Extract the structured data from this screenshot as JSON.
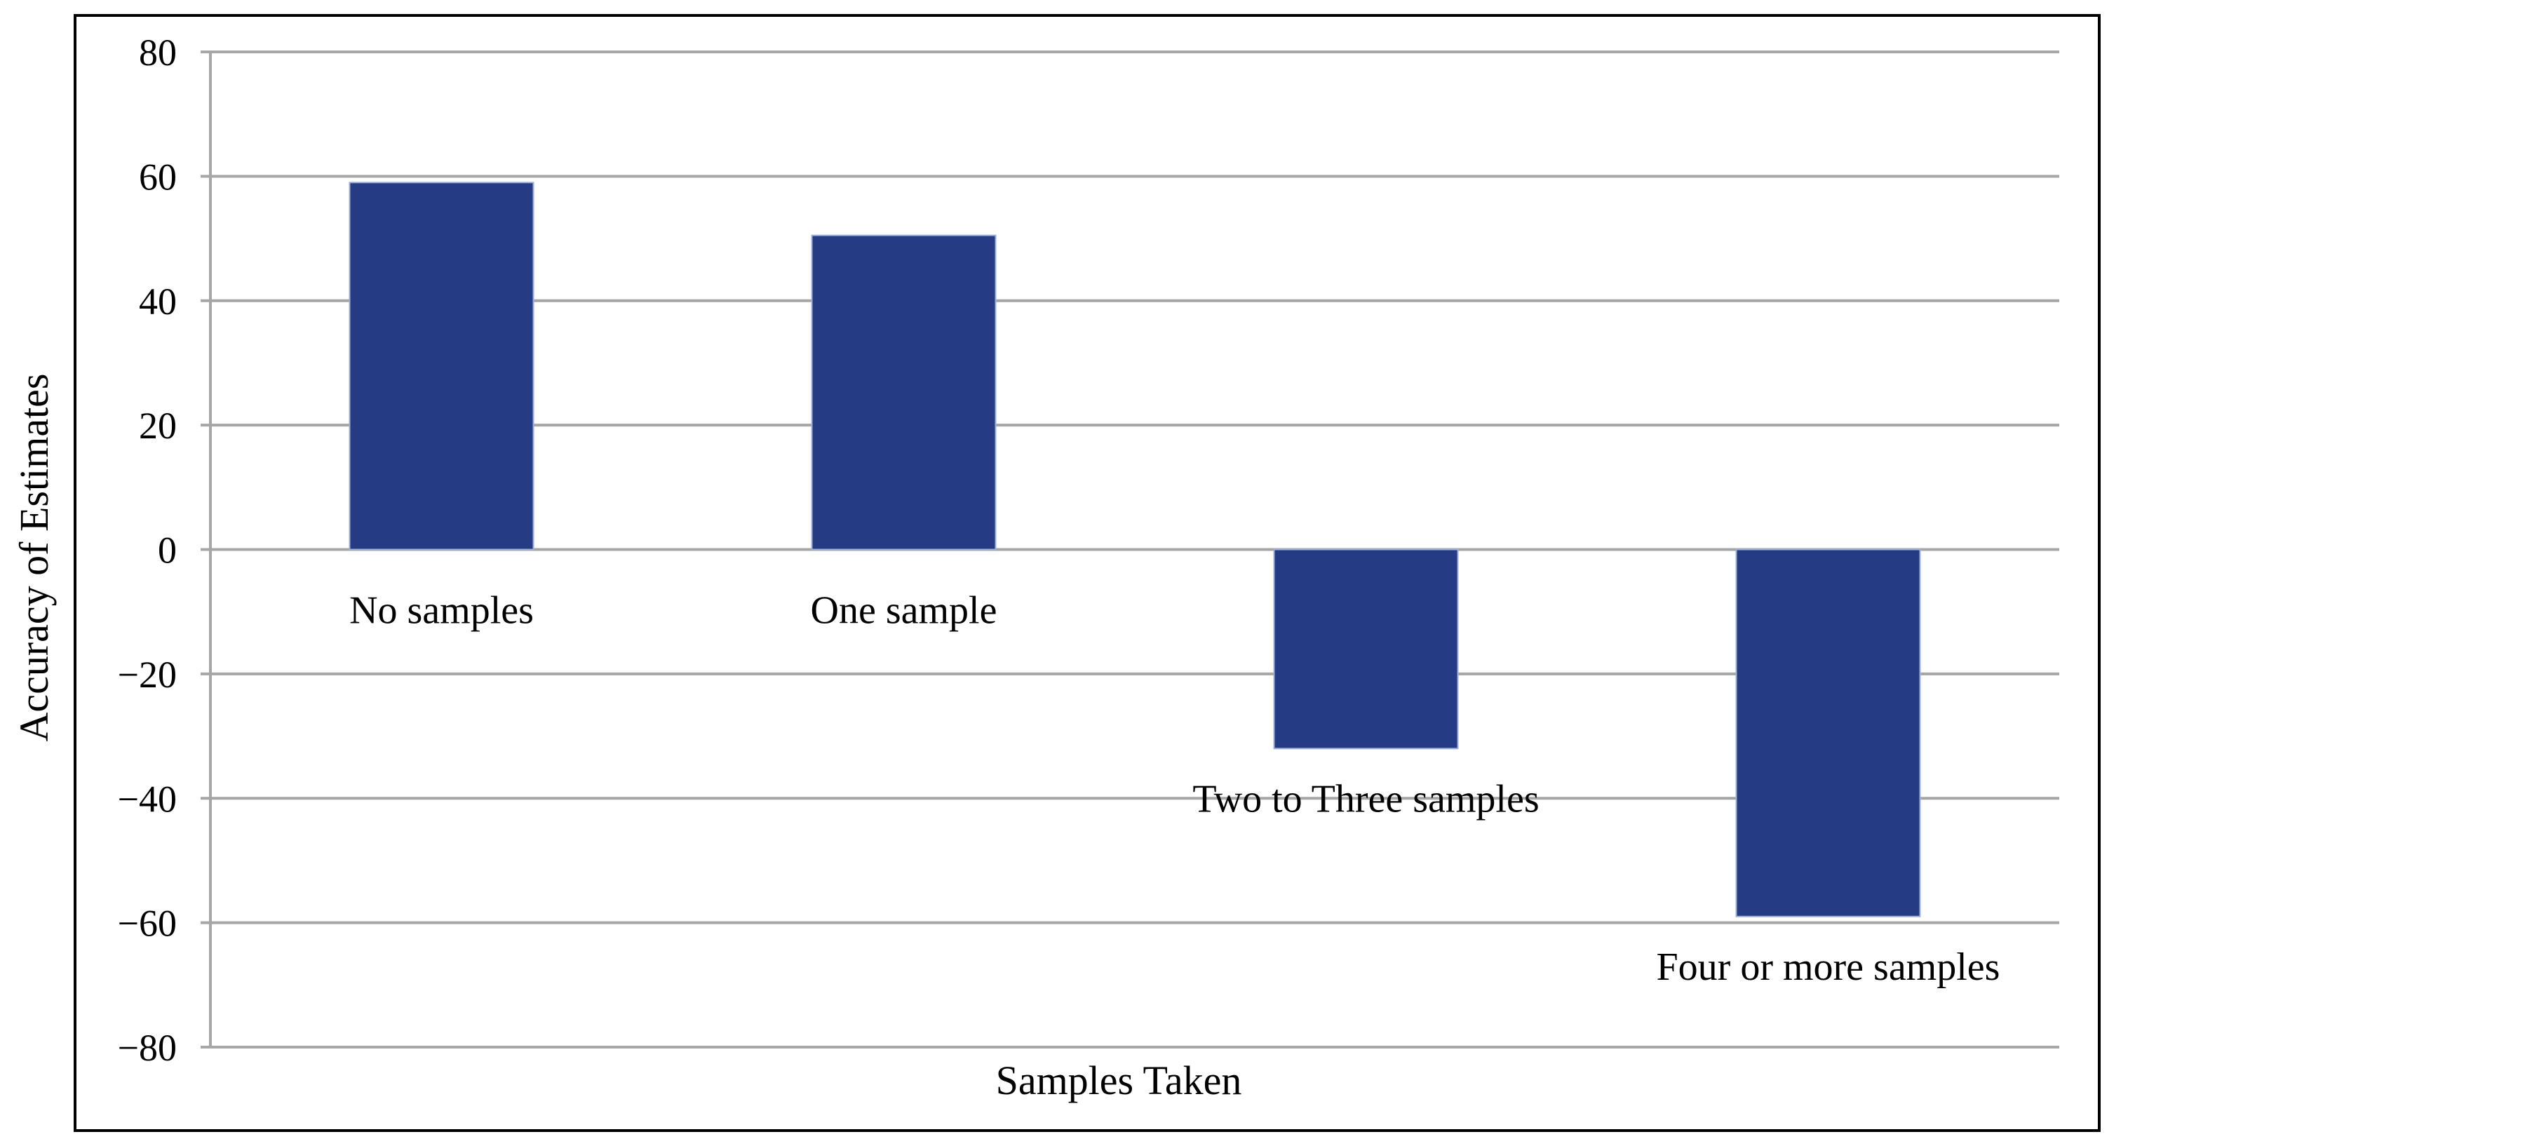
{
  "chart_data": {
    "type": "bar",
    "xlabel": "Samples Taken",
    "ylabel": "Accuracy of Estimates",
    "ylim": [
      -80,
      80
    ],
    "y_ticks": [
      80,
      60,
      40,
      20,
      0,
      -20,
      -40,
      -60,
      -80
    ],
    "y_tick_labels": [
      "80",
      "60",
      "40",
      "20",
      "0",
      "−20",
      "−40",
      "−60",
      "−80"
    ],
    "grid": true,
    "legend": "none",
    "categories": [
      "No samples",
      "One sample",
      "Two to Three samples",
      "Four or more samples"
    ],
    "values": [
      59,
      50.5,
      -32,
      -59
    ],
    "bar_color": "#253c85",
    "grid_color": "#a6a6a6",
    "frame_color": "#000000"
  }
}
